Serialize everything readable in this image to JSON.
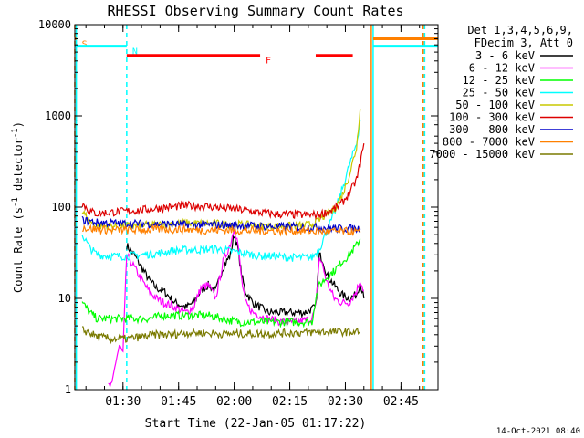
{
  "chart_data": {
    "type": "line",
    "title": "RHESSI Observing Summary Count Rates",
    "xlabel": "Start Time (22-Jan-05 01:17:22)",
    "ylabel_main": "Count Rate (s",
    "ylabel_sup1": "-1",
    "ylabel_mid": " detector",
    "ylabel_sup2": "-1",
    "ylabel_end": ")",
    "ylog": true,
    "ylim": [
      1,
      10000
    ],
    "xlim_minutes_after_0117": [
      0,
      98
    ],
    "x_ticks": [
      {
        "label": "01:30",
        "min": 13
      },
      {
        "label": "01:45",
        "min": 28
      },
      {
        "label": "02:00",
        "min": 43
      },
      {
        "label": "02:15",
        "min": 58
      },
      {
        "label": "02:30",
        "min": 73
      },
      {
        "label": "02:45",
        "min": 88
      }
    ],
    "y_ticks": [
      {
        "label": "1",
        "v": 1
      },
      {
        "label": "10",
        "v": 10
      },
      {
        "label": "100",
        "v": 100
      },
      {
        "label": "1000",
        "v": 1000
      },
      {
        "label": "10000",
        "v": 10000
      }
    ],
    "legend_header": [
      "Det 1,3,4,5,6,9,",
      "FDecim 3, Att 0"
    ],
    "legend_placement": "right",
    "series": [
      {
        "name": "3 - 6 keV",
        "color": "#000000",
        "points": [
          [
            14,
            38
          ],
          [
            16,
            30
          ],
          [
            18,
            22
          ],
          [
            20,
            16
          ],
          [
            22,
            13
          ],
          [
            24,
            12
          ],
          [
            27,
            9
          ],
          [
            30,
            8
          ],
          [
            32,
            9
          ],
          [
            34,
            12
          ],
          [
            36,
            14
          ],
          [
            38,
            12
          ],
          [
            40,
            22
          ],
          [
            42,
            30
          ],
          [
            43,
            50
          ],
          [
            44,
            35
          ],
          [
            45,
            18
          ],
          [
            46,
            12
          ],
          [
            48,
            9
          ],
          [
            50,
            8
          ],
          [
            52,
            7
          ],
          [
            55,
            7
          ],
          [
            58,
            7
          ],
          [
            62,
            7
          ],
          [
            65,
            8
          ],
          [
            66,
            30
          ],
          [
            67,
            26
          ],
          [
            68,
            18
          ],
          [
            70,
            14
          ],
          [
            72,
            11
          ],
          [
            74,
            10
          ],
          [
            76,
            11
          ],
          [
            77,
            15
          ],
          [
            78,
            10
          ]
        ]
      },
      {
        "name": "6 - 12 keV",
        "color": "#ff00ff",
        "points": [
          [
            9,
            1.1
          ],
          [
            10,
            1.1
          ],
          [
            11,
            2
          ],
          [
            12,
            3
          ],
          [
            13,
            2.5
          ],
          [
            14,
            30
          ],
          [
            16,
            22
          ],
          [
            18,
            16
          ],
          [
            20,
            12
          ],
          [
            22,
            10
          ],
          [
            24,
            9
          ],
          [
            27,
            8
          ],
          [
            30,
            7
          ],
          [
            32,
            8
          ],
          [
            34,
            13
          ],
          [
            36,
            14
          ],
          [
            38,
            10
          ],
          [
            40,
            25
          ],
          [
            42,
            40
          ],
          [
            43,
            60
          ],
          [
            44,
            40
          ],
          [
            45,
            16
          ],
          [
            46,
            9
          ],
          [
            48,
            7
          ],
          [
            52,
            6
          ],
          [
            56,
            5.5
          ],
          [
            60,
            5.5
          ],
          [
            64,
            6
          ],
          [
            65,
            8
          ],
          [
            66,
            28
          ],
          [
            67,
            22
          ],
          [
            68,
            15
          ],
          [
            70,
            10
          ],
          [
            72,
            9
          ],
          [
            74,
            9
          ],
          [
            76,
            12
          ],
          [
            77,
            16
          ],
          [
            78,
            12
          ]
        ]
      },
      {
        "name": "12 - 25 keV",
        "color": "#00ff00",
        "points": [
          [
            2,
            9
          ],
          [
            4,
            7
          ],
          [
            6,
            6
          ],
          [
            10,
            6
          ],
          [
            14,
            6
          ],
          [
            20,
            6
          ],
          [
            24,
            6.5
          ],
          [
            28,
            6.5
          ],
          [
            32,
            6.5
          ],
          [
            36,
            6.5
          ],
          [
            40,
            6
          ],
          [
            44,
            5.5
          ],
          [
            48,
            5.5
          ],
          [
            52,
            5.5
          ],
          [
            56,
            5.5
          ],
          [
            60,
            5.5
          ],
          [
            64,
            5.5
          ],
          [
            65,
            10
          ],
          [
            66,
            14
          ],
          [
            68,
            17
          ],
          [
            70,
            20
          ],
          [
            72,
            25
          ],
          [
            74,
            30
          ],
          [
            76,
            38
          ],
          [
            77,
            45
          ]
        ]
      },
      {
        "name": "25 - 50 keV",
        "color": "#00ffff",
        "points": [
          [
            2,
            50
          ],
          [
            4,
            36
          ],
          [
            6,
            30
          ],
          [
            10,
            29
          ],
          [
            14,
            29
          ],
          [
            18,
            30
          ],
          [
            22,
            31
          ],
          [
            26,
            33
          ],
          [
            30,
            34
          ],
          [
            34,
            34
          ],
          [
            38,
            35
          ],
          [
            42,
            33
          ],
          [
            46,
            31
          ],
          [
            50,
            29
          ],
          [
            54,
            29
          ],
          [
            58,
            28
          ],
          [
            62,
            28
          ],
          [
            64,
            28
          ],
          [
            66,
            35
          ],
          [
            68,
            55
          ],
          [
            70,
            85
          ],
          [
            72,
            150
          ],
          [
            74,
            280
          ],
          [
            76,
            500
          ],
          [
            77,
            900
          ]
        ]
      },
      {
        "name": "50 - 100 keV",
        "color": "#c8c800",
        "points": [
          [
            2,
            90
          ],
          [
            4,
            70
          ],
          [
            6,
            62
          ],
          [
            10,
            62
          ],
          [
            14,
            62
          ],
          [
            18,
            63
          ],
          [
            22,
            64
          ],
          [
            26,
            66
          ],
          [
            30,
            67
          ],
          [
            34,
            66
          ],
          [
            38,
            66
          ],
          [
            42,
            65
          ],
          [
            46,
            64
          ],
          [
            50,
            62
          ],
          [
            54,
            62
          ],
          [
            58,
            62
          ],
          [
            62,
            63
          ],
          [
            64,
            65
          ],
          [
            66,
            72
          ],
          [
            68,
            85
          ],
          [
            70,
            95
          ],
          [
            72,
            130
          ],
          [
            74,
            220
          ],
          [
            76,
            450
          ],
          [
            77,
            1200
          ]
        ]
      },
      {
        "name": "100 - 300 keV",
        "color": "#dd0000",
        "points": [
          [
            2,
            110
          ],
          [
            4,
            90
          ],
          [
            6,
            85
          ],
          [
            10,
            88
          ],
          [
            14,
            90
          ],
          [
            18,
            93
          ],
          [
            22,
            97
          ],
          [
            26,
            100
          ],
          [
            30,
            104
          ],
          [
            34,
            103
          ],
          [
            38,
            100
          ],
          [
            42,
            96
          ],
          [
            46,
            92
          ],
          [
            50,
            87
          ],
          [
            54,
            84
          ],
          [
            58,
            83
          ],
          [
            62,
            82
          ],
          [
            64,
            82
          ],
          [
            66,
            83
          ],
          [
            68,
            88
          ],
          [
            70,
            95
          ],
          [
            72,
            110
          ],
          [
            74,
            140
          ],
          [
            76,
            200
          ],
          [
            77,
            300
          ],
          [
            78,
            500
          ]
        ]
      },
      {
        "name": "300 - 800 keV",
        "color": "#0000cc",
        "points": [
          [
            2,
            72
          ],
          [
            4,
            70
          ],
          [
            6,
            68
          ],
          [
            10,
            67
          ],
          [
            14,
            66
          ],
          [
            18,
            66
          ],
          [
            22,
            65
          ],
          [
            26,
            65
          ],
          [
            30,
            64
          ],
          [
            34,
            64
          ],
          [
            38,
            64
          ],
          [
            42,
            63
          ],
          [
            46,
            63
          ],
          [
            50,
            62
          ],
          [
            54,
            61
          ],
          [
            58,
            61
          ],
          [
            62,
            60
          ],
          [
            66,
            60
          ],
          [
            70,
            59
          ],
          [
            74,
            58
          ],
          [
            77,
            58
          ]
        ]
      },
      {
        "name": "800 - 7000 keV",
        "color": "#ff8000",
        "points": [
          [
            2,
            60
          ],
          [
            4,
            58
          ],
          [
            6,
            57
          ],
          [
            10,
            56
          ],
          [
            14,
            56
          ],
          [
            18,
            56
          ],
          [
            22,
            57
          ],
          [
            26,
            57
          ],
          [
            30,
            57
          ],
          [
            34,
            56
          ],
          [
            38,
            56
          ],
          [
            42,
            56
          ],
          [
            46,
            55
          ],
          [
            50,
            55
          ],
          [
            54,
            55
          ],
          [
            58,
            55
          ],
          [
            62,
            55
          ],
          [
            66,
            54
          ],
          [
            70,
            54
          ],
          [
            74,
            54
          ],
          [
            77,
            53
          ]
        ]
      },
      {
        "name": "7000 - 15000 keV",
        "color": "#7a7a00",
        "points": [
          [
            2,
            4.5
          ],
          [
            4,
            4.2
          ],
          [
            6,
            3.8
          ],
          [
            10,
            3.6
          ],
          [
            14,
            3.6
          ],
          [
            18,
            3.8
          ],
          [
            22,
            4
          ],
          [
            26,
            4
          ],
          [
            30,
            4.2
          ],
          [
            34,
            4.2
          ],
          [
            38,
            4.1
          ],
          [
            42,
            4.1
          ],
          [
            46,
            4.1
          ],
          [
            50,
            4.1
          ],
          [
            54,
            4.1
          ],
          [
            58,
            4.2
          ],
          [
            62,
            4.2
          ],
          [
            66,
            4.3
          ],
          [
            70,
            4.3
          ],
          [
            74,
            4.3
          ],
          [
            77,
            4.3
          ]
        ]
      }
    ],
    "status_bars": [
      {
        "label": "S",
        "color": "#ff8000",
        "v": 7000,
        "start": 0,
        "end": 0.4
      },
      {
        "label": "N",
        "color": "#00ffff",
        "v": 5800,
        "start": 0,
        "end": 14
      },
      {
        "label": "F",
        "color": "#ff0000",
        "v": 4600,
        "start": 14,
        "end": 50
      },
      {
        "label": "",
        "color": "#ff0000",
        "v": 4600,
        "start": 65,
        "end": 75
      },
      {
        "label": "",
        "color": "#00ffff",
        "v": 5800,
        "start": 80.5,
        "end": 98
      },
      {
        "label": "",
        "color": "#ff8000",
        "v": 7000,
        "start": 80.5,
        "end": 98
      }
    ],
    "vlines": [
      {
        "min": 0,
        "color": "#ff8000",
        "dash": true
      },
      {
        "min": 0.4,
        "color": "#00ffff",
        "dash": false
      },
      {
        "min": 14,
        "color": "#00ffff",
        "dash": true
      },
      {
        "min": 80,
        "color": "#ff8000",
        "dash": false
      },
      {
        "min": 80.5,
        "color": "#00ffff",
        "dash": false
      },
      {
        "min": 94,
        "color": "#ff8000",
        "dash": true
      },
      {
        "min": 94.4,
        "color": "#00ffff",
        "dash": true
      }
    ],
    "footer_date": "14-Oct-2021 08:40"
  }
}
